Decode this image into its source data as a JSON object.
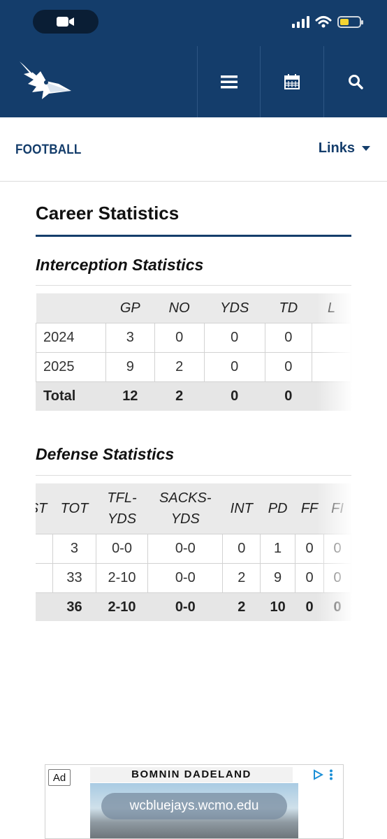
{
  "header": {
    "sport": "FOOTBALL",
    "links_label": "Links",
    "battery_level": 0.4,
    "signal_bars": 4,
    "colors": {
      "brand": "#143d6b",
      "status_dark": "#0a1e35",
      "battery": "#f5d431"
    }
  },
  "page": {
    "title": "Career Statistics"
  },
  "interception": {
    "title": "Interception Statistics",
    "columns": [
      "",
      "GP",
      "NO",
      "YDS",
      "TD",
      "L"
    ],
    "rows": [
      [
        "2024",
        "3",
        "0",
        "0",
        "0",
        ""
      ],
      [
        "2025",
        "9",
        "2",
        "0",
        "0",
        ""
      ]
    ],
    "total": [
      "Total",
      "12",
      "2",
      "0",
      "0",
      ""
    ]
  },
  "defense": {
    "title": "Defense Statistics",
    "columns": [
      "ST",
      "TOT",
      "TFL-\nYDS",
      "SACKS-\nYDS",
      "INT",
      "PD",
      "FF",
      "FI"
    ],
    "rows": [
      [
        "",
        "3",
        "0-0",
        "0-0",
        "0",
        "1",
        "0",
        "0"
      ],
      [
        "",
        "33",
        "2-10",
        "0-0",
        "2",
        "9",
        "0",
        "0"
      ]
    ],
    "total": [
      "",
      "36",
      "2-10",
      "0-0",
      "2",
      "10",
      "0",
      "0"
    ]
  },
  "ad": {
    "badge": "Ad",
    "brand": "BOMNIN DADELAND",
    "url": "wcbluejays.wcmo.edu"
  }
}
